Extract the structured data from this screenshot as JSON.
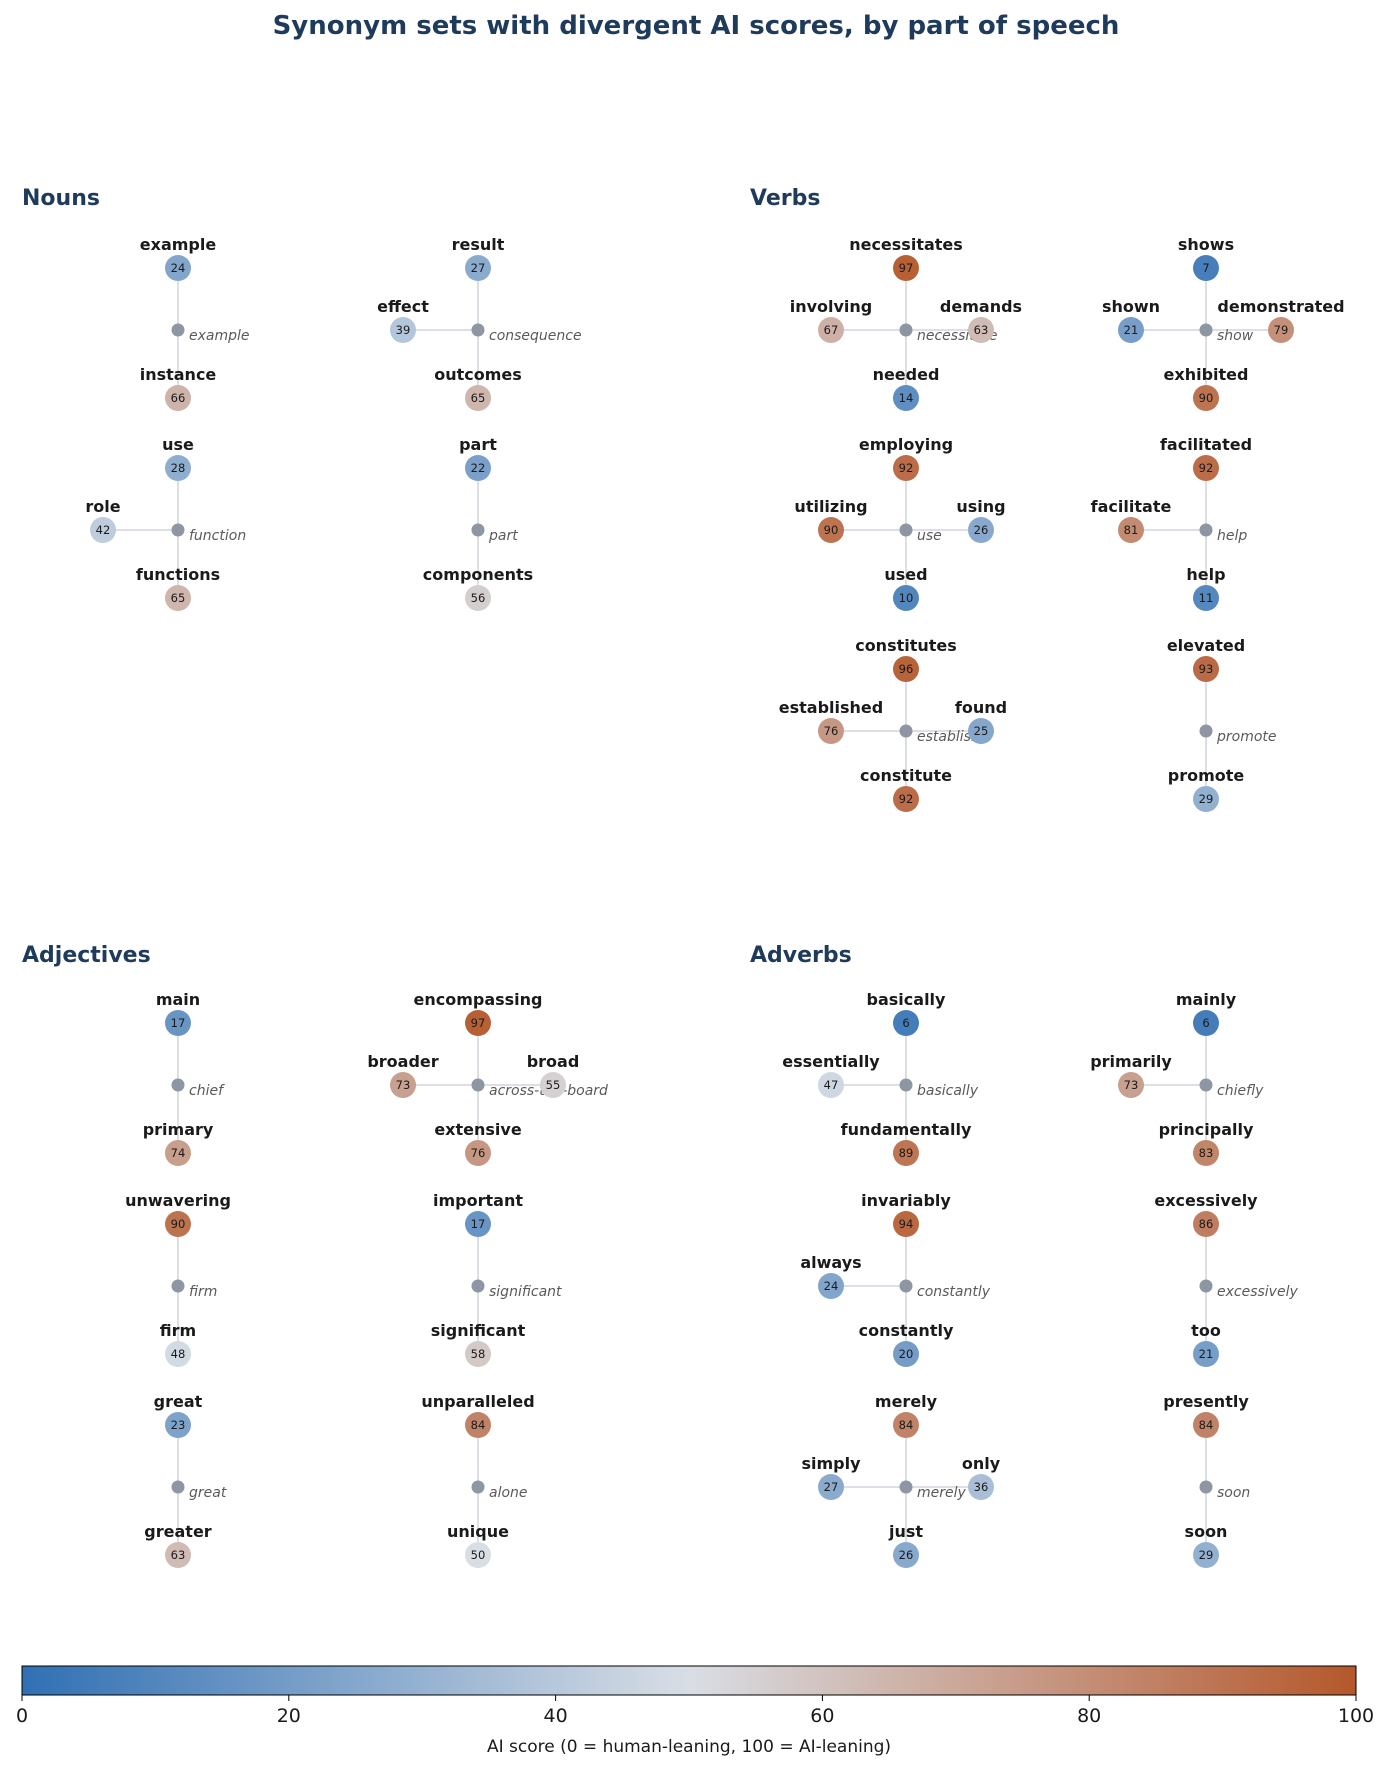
{
  "title": "Synonym sets with divergent AI scores, by part of speech",
  "colorbar": {
    "label": "AI score (0 = human-leaning, 100 = AI-leaning)",
    "ticks": [
      0,
      20,
      40,
      60,
      80,
      100
    ],
    "low_color": "#3070b3",
    "mid_color": "#d9dee5",
    "high_color": "#b5582b"
  },
  "chart_data": {
    "type": "network",
    "value_range": [
      0,
      100
    ],
    "panels": [
      {
        "name": "Nouns",
        "sets": [
          {
            "hub": "example",
            "top": {
              "word": "example",
              "score": 24
            },
            "bottom": {
              "word": "instance",
              "score": 66
            }
          },
          {
            "hub": "consequence",
            "top": {
              "word": "result",
              "score": 27
            },
            "left": {
              "word": "effect",
              "score": 39
            },
            "bottom": {
              "word": "outcomes",
              "score": 65
            }
          },
          {
            "hub": "function",
            "top": {
              "word": "use",
              "score": 28
            },
            "left": {
              "word": "role",
              "score": 42
            },
            "bottom": {
              "word": "functions",
              "score": 65
            }
          },
          {
            "hub": "part",
            "top": {
              "word": "part",
              "score": 22
            },
            "bottom": {
              "word": "components",
              "score": 56
            }
          }
        ]
      },
      {
        "name": "Verbs",
        "sets": [
          {
            "hub": "necessitate",
            "top": {
              "word": "necessitates",
              "score": 97
            },
            "left": {
              "word": "involving",
              "score": 67
            },
            "right": {
              "word": "demands",
              "score": 63
            },
            "bottom": {
              "word": "needed",
              "score": 14
            }
          },
          {
            "hub": "show",
            "top": {
              "word": "shows",
              "score": 7
            },
            "left": {
              "word": "shown",
              "score": 21
            },
            "right": {
              "word": "demonstrated",
              "score": 79
            },
            "bottom": {
              "word": "exhibited",
              "score": 90
            }
          },
          {
            "hub": "use",
            "top": {
              "word": "employing",
              "score": 92
            },
            "left": {
              "word": "utilizing",
              "score": 90
            },
            "right": {
              "word": "using",
              "score": 26
            },
            "bottom": {
              "word": "used",
              "score": 10
            }
          },
          {
            "hub": "help",
            "top": {
              "word": "facilitated",
              "score": 92
            },
            "left": {
              "word": "facilitate",
              "score": 81
            },
            "bottom": {
              "word": "help",
              "score": 11
            }
          },
          {
            "hub": "establish",
            "top": {
              "word": "constitutes",
              "score": 96
            },
            "left": {
              "word": "established",
              "score": 76
            },
            "right": {
              "word": "found",
              "score": 25
            },
            "bottom": {
              "word": "constitute",
              "score": 92
            }
          },
          {
            "hub": "promote",
            "top": {
              "word": "elevated",
              "score": 93
            },
            "bottom": {
              "word": "promote",
              "score": 29
            }
          }
        ]
      },
      {
        "name": "Adjectives",
        "sets": [
          {
            "hub": "chief",
            "top": {
              "word": "main",
              "score": 17
            },
            "bottom": {
              "word": "primary",
              "score": 74
            }
          },
          {
            "hub": "across-the-board",
            "top": {
              "word": "encompassing",
              "score": 97
            },
            "left": {
              "word": "broader",
              "score": 73
            },
            "right": {
              "word": "broad",
              "score": 55
            },
            "bottom": {
              "word": "extensive",
              "score": 76
            }
          },
          {
            "hub": "firm",
            "top": {
              "word": "unwavering",
              "score": 90
            },
            "bottom": {
              "word": "firm",
              "score": 48
            }
          },
          {
            "hub": "significant",
            "top": {
              "word": "important",
              "score": 17
            },
            "bottom": {
              "word": "significant",
              "score": 58
            }
          },
          {
            "hub": "great",
            "top": {
              "word": "great",
              "score": 23
            },
            "bottom": {
              "word": "greater",
              "score": 63
            }
          },
          {
            "hub": "alone",
            "top": {
              "word": "unparalleled",
              "score": 84
            },
            "bottom": {
              "word": "unique",
              "score": 50
            }
          }
        ]
      },
      {
        "name": "Adverbs",
        "sets": [
          {
            "hub": "basically",
            "top": {
              "word": "basically",
              "score": 6
            },
            "left": {
              "word": "essentially",
              "score": 47
            },
            "bottom": {
              "word": "fundamentally",
              "score": 89
            }
          },
          {
            "hub": "chiefly",
            "top": {
              "word": "mainly",
              "score": 6
            },
            "left": {
              "word": "primarily",
              "score": 73
            },
            "bottom": {
              "word": "principally",
              "score": 83
            }
          },
          {
            "hub": "constantly",
            "top": {
              "word": "invariably",
              "score": 94
            },
            "left": {
              "word": "always",
              "score": 24
            },
            "bottom": {
              "word": "constantly",
              "score": 20
            }
          },
          {
            "hub": "excessively",
            "top": {
              "word": "excessively",
              "score": 86
            },
            "bottom": {
              "word": "too",
              "score": 21
            }
          },
          {
            "hub": "merely",
            "top": {
              "word": "merely",
              "score": 84
            },
            "left": {
              "word": "simply",
              "score": 27
            },
            "right": {
              "word": "only",
              "score": 36
            },
            "bottom": {
              "word": "just",
              "score": 26
            }
          },
          {
            "hub": "soon",
            "top": {
              "word": "presently",
              "score": 84
            },
            "bottom": {
              "word": "soon",
              "score": 29
            }
          }
        ]
      }
    ]
  }
}
